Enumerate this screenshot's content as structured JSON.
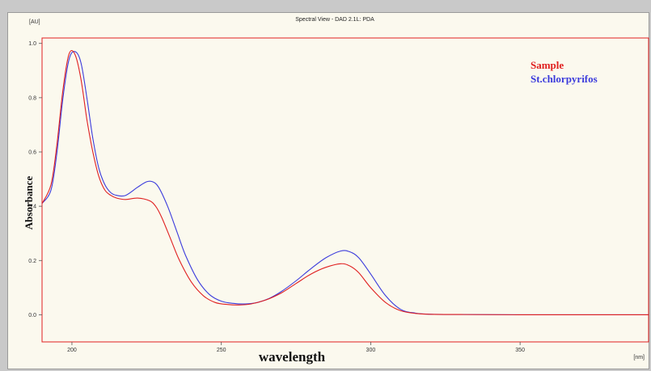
{
  "chart_data": {
    "type": "line",
    "title": "Spectral View - DAD 2.1L: PDA",
    "xlabel": "wavelength",
    "ylabel": "Absorbance",
    "x_unit": "[nm]",
    "y_unit": "[AU]",
    "xlim": [
      190,
      393
    ],
    "ylim": [
      -0.1,
      1.02
    ],
    "xticks": [
      200,
      250,
      300,
      350
    ],
    "yticks": [
      0.0,
      0.2,
      0.4,
      0.6,
      0.8,
      1.0
    ],
    "ytick_labels": [
      "0.0",
      "0.2",
      "0.4",
      "0.6",
      "0.8",
      "1.0"
    ],
    "grid": false,
    "legend_position": "top-right",
    "series": [
      {
        "name": "Sample",
        "color": "#e02020",
        "x": [
          190,
          193,
          195,
          197,
          199,
          201,
          203,
          205,
          207,
          209,
          211,
          213,
          215,
          218,
          222,
          226,
          228,
          230,
          233,
          236,
          240,
          244,
          248,
          252,
          256,
          260,
          265,
          270,
          275,
          280,
          285,
          290,
          293,
          296,
          300,
          305,
          310,
          315,
          320,
          330,
          350,
          393
        ],
        "y": [
          0.41,
          0.48,
          0.63,
          0.83,
          0.96,
          0.96,
          0.87,
          0.72,
          0.6,
          0.51,
          0.46,
          0.44,
          0.43,
          0.425,
          0.43,
          0.42,
          0.4,
          0.36,
          0.28,
          0.2,
          0.12,
          0.07,
          0.045,
          0.038,
          0.036,
          0.04,
          0.055,
          0.08,
          0.115,
          0.15,
          0.175,
          0.188,
          0.18,
          0.155,
          0.1,
          0.045,
          0.015,
          0.005,
          0.002,
          0.001,
          0.0,
          0.0
        ]
      },
      {
        "name": "St.chlorpyrifos",
        "color": "#3b3bdc",
        "x": [
          190,
          193,
          195,
          197,
          199,
          201,
          203,
          205,
          207,
          209,
          211,
          213,
          215,
          218,
          222,
          225,
          227,
          229,
          232,
          235,
          238,
          242,
          246,
          250,
          254,
          258,
          262,
          266,
          270,
          275,
          280,
          285,
          290,
          293,
          296,
          300,
          305,
          310,
          315,
          320,
          330,
          350,
          393
        ],
        "y": [
          0.41,
          0.46,
          0.6,
          0.8,
          0.94,
          0.97,
          0.93,
          0.8,
          0.65,
          0.54,
          0.48,
          0.45,
          0.44,
          0.44,
          0.47,
          0.49,
          0.49,
          0.47,
          0.4,
          0.31,
          0.22,
          0.13,
          0.075,
          0.05,
          0.042,
          0.04,
          0.045,
          0.06,
          0.085,
          0.125,
          0.17,
          0.21,
          0.235,
          0.232,
          0.21,
          0.15,
          0.07,
          0.02,
          0.006,
          0.002,
          0.001,
          0.0,
          0.0
        ]
      }
    ]
  },
  "colors": {
    "frame": "#e02020",
    "background": "#fbf9ee"
  }
}
